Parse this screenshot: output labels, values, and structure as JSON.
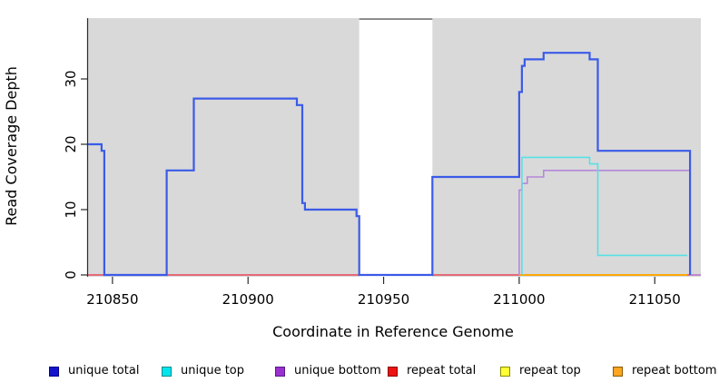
{
  "chart_data": {
    "type": "line",
    "title": "",
    "xlabel": "Coordinate in Reference Genome",
    "ylabel": "Read Coverage Depth",
    "xlim": [
      210841,
      211067
    ],
    "ylim": [
      0,
      39.3
    ],
    "xticks": [
      210850,
      210900,
      210950,
      211000,
      211050
    ],
    "yticks": [
      0,
      10,
      20,
      30
    ],
    "plot_bg": "#D9D9D9",
    "gap_region": {
      "x0": 210941,
      "x1": 210968,
      "fill": "#FFFFFF",
      "top_border": "#8C8C8C"
    },
    "grid": false,
    "legend_position": "bottom",
    "series": [
      {
        "name": "repeat total",
        "color": "#E8465A",
        "width": 1.6,
        "start0": false,
        "levels": [
          [
            210841,
            0
          ]
        ],
        "end": 211067
      },
      {
        "name": "repeat top",
        "color": "#F5E900",
        "width": 1.6,
        "start0": false,
        "levels": [
          [
            211000,
            0
          ]
        ],
        "end": 211062
      },
      {
        "name": "repeat bottom",
        "color": "#FFA500",
        "width": 1.8,
        "start0": false,
        "levels": [
          [
            211000,
            0
          ]
        ],
        "end": 211062
      },
      {
        "name": "unique bottom",
        "color": "#B588DC",
        "width": 1.6,
        "start0": true,
        "levels": [
          [
            211000,
            13
          ],
          [
            211001,
            14
          ],
          [
            211003,
            15
          ],
          [
            211009,
            16
          ],
          [
            211063,
            0
          ]
        ],
        "end": 211067
      },
      {
        "name": "unique top",
        "color": "#55E1E6",
        "width": 1.6,
        "start0": true,
        "levels": [
          [
            211001,
            18
          ],
          [
            211026,
            17
          ],
          [
            211029,
            3
          ]
        ],
        "end": 211062
      },
      {
        "name": "unique total",
        "color": "#3B5BE8",
        "width": 2.2,
        "start0": false,
        "levels": [
          [
            210841,
            20
          ],
          [
            210846,
            19
          ],
          [
            210847,
            0
          ],
          [
            210870,
            16
          ],
          [
            210880,
            27
          ],
          [
            210918,
            26
          ],
          [
            210920,
            11
          ],
          [
            210921,
            10
          ],
          [
            210940,
            9
          ],
          [
            210941,
            0
          ],
          [
            210968,
            15
          ],
          [
            211000,
            28
          ],
          [
            211001,
            32
          ],
          [
            211002,
            33
          ],
          [
            211009,
            34
          ],
          [
            211026,
            33
          ],
          [
            211029,
            19
          ],
          [
            211063,
            0
          ]
        ],
        "end": 211063
      }
    ]
  },
  "legend": {
    "items": [
      {
        "label": "unique total",
        "fill": "#1414CC",
        "border": "#00008B"
      },
      {
        "label": "unique top",
        "fill": "#00E5EE",
        "border": "#008B8B"
      },
      {
        "label": "unique bottom",
        "fill": "#9B30D0",
        "border": "#551A8B"
      },
      {
        "label": "repeat total",
        "fill": "#EE1111",
        "border": "#8B0000"
      },
      {
        "label": "repeat top",
        "fill": "#FFFF33",
        "border": "#8B8B00"
      },
      {
        "label": "repeat bottom",
        "fill": "#FFA520",
        "border": "#8B5A00"
      }
    ]
  }
}
